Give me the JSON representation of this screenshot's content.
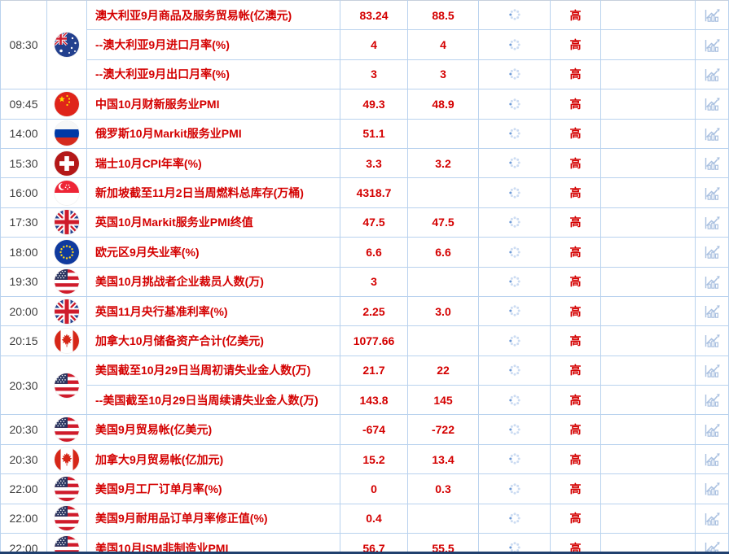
{
  "colors": {
    "accent_red": "#d40000",
    "time_text": "#3f3f3f",
    "grid_vertical": "#b9d2ee",
    "grid_group_separator": "#c6d0dc",
    "grid_sub_separator": "#d5e4f5",
    "icon_light_blue": "#a9c0e0",
    "spinner_dot": "#ccdcf2",
    "spinner_active_dot": "#6f9bd8",
    "bottom_bar": "#20406e"
  },
  "icons": {
    "spinner": "loading-spinner",
    "chart": "bar-chart-with-trend-arrow"
  },
  "table": {
    "groups": [
      {
        "time": "08:30",
        "flag": "australia",
        "events": [
          {
            "name": "澳大利亚9月商品及服务贸易帐(亿澳元)",
            "value1": "83.24",
            "value2": "88.5",
            "importance": "高"
          },
          {
            "name": "--澳大利亚9月进口月率(%)",
            "value1": "4",
            "value2": "4",
            "importance": "高"
          },
          {
            "name": "--澳大利亚9月出口月率(%)",
            "value1": "3",
            "value2": "3",
            "importance": "高"
          }
        ]
      },
      {
        "time": "09:45",
        "flag": "china",
        "events": [
          {
            "name": "中国10月财新服务业PMI",
            "value1": "49.3",
            "value2": "48.9",
            "importance": "高"
          }
        ]
      },
      {
        "time": "14:00",
        "flag": "russia",
        "events": [
          {
            "name": "俄罗斯10月Markit服务业PMI",
            "value1": "51.1",
            "value2": "",
            "importance": "高"
          }
        ]
      },
      {
        "time": "15:30",
        "flag": "switzerland",
        "events": [
          {
            "name": "瑞士10月CPI年率(%)",
            "value1": "3.3",
            "value2": "3.2",
            "importance": "高"
          }
        ]
      },
      {
        "time": "16:00",
        "flag": "singapore",
        "events": [
          {
            "name": "新加坡截至11月2日当周燃料总库存(万桶)",
            "value1": "4318.7",
            "value2": "",
            "importance": "高"
          }
        ]
      },
      {
        "time": "17:30",
        "flag": "uk",
        "events": [
          {
            "name": "英国10月Markit服务业PMI终值",
            "value1": "47.5",
            "value2": "47.5",
            "importance": "高"
          }
        ]
      },
      {
        "time": "18:00",
        "flag": "eu",
        "events": [
          {
            "name": "欧元区9月失业率(%)",
            "value1": "6.6",
            "value2": "6.6",
            "importance": "高"
          }
        ]
      },
      {
        "time": "19:30",
        "flag": "usa",
        "events": [
          {
            "name": "美国10月挑战者企业裁员人数(万)",
            "value1": "3",
            "value2": "",
            "importance": "高"
          }
        ]
      },
      {
        "time": "20:00",
        "flag": "uk",
        "events": [
          {
            "name": "英国11月央行基准利率(%)",
            "value1": "2.25",
            "value2": "3.0",
            "importance": "高"
          }
        ]
      },
      {
        "time": "20:15",
        "flag": "canada",
        "events": [
          {
            "name": "加拿大10月储备资产合计(亿美元)",
            "value1": "1077.66",
            "value2": "",
            "importance": "高"
          }
        ]
      },
      {
        "time": "20:30",
        "flag": "usa",
        "events": [
          {
            "name": "美国截至10月29日当周初请失业金人数(万)",
            "value1": "21.7",
            "value2": "22",
            "importance": "高"
          },
          {
            "name": "--美国截至10月29日当周续请失业金人数(万)",
            "value1": "143.8",
            "value2": "145",
            "importance": "高"
          }
        ]
      },
      {
        "time": "20:30",
        "flag": "usa",
        "events": [
          {
            "name": "美国9月贸易帐(亿美元)",
            "value1": "-674",
            "value2": "-722",
            "importance": "高"
          }
        ]
      },
      {
        "time": "20:30",
        "flag": "canada",
        "events": [
          {
            "name": "加拿大9月贸易帐(亿加元)",
            "value1": "15.2",
            "value2": "13.4",
            "importance": "高"
          }
        ]
      },
      {
        "time": "22:00",
        "flag": "usa",
        "events": [
          {
            "name": "美国9月工厂订单月率(%)",
            "value1": "0",
            "value2": "0.3",
            "importance": "高"
          }
        ]
      },
      {
        "time": "22:00",
        "flag": "usa",
        "events": [
          {
            "name": "美国9月耐用品订单月率修正值(%)",
            "value1": "0.4",
            "value2": "",
            "importance": "高"
          }
        ]
      },
      {
        "time": "22:00",
        "flag": "usa",
        "events": [
          {
            "name": "美国10月ISM非制造业PMI",
            "value1": "56.7",
            "value2": "55.5",
            "importance": "高"
          }
        ]
      }
    ]
  }
}
